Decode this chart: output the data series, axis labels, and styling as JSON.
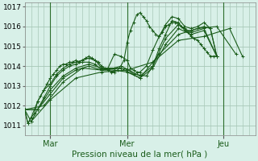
{
  "xlabel": "Pression niveau de la mer( hPa )",
  "bg_color": "#d8f0e8",
  "grid_color": "#a8c8b8",
  "line_color": "#1a5c1a",
  "ylim": [
    1010.5,
    1017.2
  ],
  "xlim": [
    0,
    72
  ],
  "yticks": [
    1011,
    1012,
    1013,
    1014,
    1015,
    1016,
    1017
  ],
  "day_labels": [
    [
      8,
      "Mar"
    ],
    [
      32,
      "Mer"
    ],
    [
      62,
      "Jeu"
    ]
  ],
  "series": [
    [
      0,
      1011.8,
      1,
      1011.1,
      2,
      1011.4,
      3,
      1011.6,
      4,
      1012.2,
      5,
      1012.5,
      6,
      1012.8,
      7,
      1013.1,
      8,
      1013.4,
      9,
      1013.6,
      10,
      1013.8,
      11,
      1014.0,
      12,
      1014.1,
      13,
      1014.1,
      14,
      1014.2,
      15,
      1014.2,
      16,
      1014.3,
      17,
      1014.2,
      18,
      1014.3,
      19,
      1014.4,
      20,
      1014.5,
      21,
      1014.4,
      22,
      1014.3,
      23,
      1014.2,
      24,
      1014.0,
      25,
      1013.9,
      26,
      1013.8,
      27,
      1013.7,
      28,
      1013.7,
      29,
      1013.8,
      30,
      1014.0,
      31,
      1014.3,
      32,
      1015.2,
      33,
      1015.8,
      34,
      1016.2,
      35,
      1016.6,
      36,
      1016.7,
      37,
      1016.5,
      38,
      1016.3,
      39,
      1016.0,
      40,
      1015.8,
      41,
      1015.6,
      42,
      1015.5,
      43,
      1015.7,
      44,
      1016.0,
      45,
      1016.1,
      46,
      1016.2,
      47,
      1016.2,
      48,
      1016.1,
      49,
      1016.0,
      50,
      1015.9,
      51,
      1015.7,
      52,
      1015.5,
      53,
      1015.4,
      54,
      1015.3,
      55,
      1015.1,
      56,
      1014.9,
      57,
      1014.7,
      58,
      1014.5,
      59,
      1014.5,
      60,
      1014.5
    ],
    [
      0,
      1011.8,
      1,
      1011.1,
      2,
      1011.4,
      4,
      1012.2,
      6,
      1012.8,
      8,
      1013.1,
      10,
      1013.6,
      12,
      1013.9,
      14,
      1014.1,
      16,
      1014.2,
      18,
      1014.3,
      20,
      1014.4,
      22,
      1014.3,
      24,
      1013.9,
      26,
      1013.9,
      28,
      1014.6,
      30,
      1014.5,
      32,
      1014.3,
      33,
      1013.9,
      34,
      1013.8,
      35,
      1013.7,
      36,
      1013.7,
      38,
      1014.0,
      40,
      1014.8,
      42,
      1015.5,
      44,
      1016.1,
      46,
      1016.5,
      48,
      1016.4,
      50,
      1016.0,
      52,
      1015.9,
      54,
      1016.0,
      56,
      1016.2,
      58,
      1015.9,
      60,
      1014.5
    ],
    [
      0,
      1011.8,
      2,
      1011.2,
      4,
      1011.8,
      6,
      1012.4,
      8,
      1013.0,
      10,
      1013.5,
      12,
      1013.8,
      14,
      1014.0,
      16,
      1014.1,
      18,
      1014.2,
      20,
      1014.2,
      22,
      1014.1,
      24,
      1013.8,
      26,
      1013.85,
      28,
      1013.9,
      30,
      1014.0,
      32,
      1013.85,
      34,
      1013.6,
      36,
      1013.55,
      38,
      1013.5,
      40,
      1014.0,
      42,
      1014.9,
      44,
      1015.6,
      46,
      1016.3,
      48,
      1016.2,
      50,
      1015.8,
      52,
      1015.8,
      54,
      1015.9,
      56,
      1016.0,
      58,
      1015.9,
      60,
      1014.5
    ],
    [
      0,
      1011.8,
      4,
      1011.8,
      8,
      1012.8,
      12,
      1013.5,
      16,
      1013.9,
      20,
      1014.1,
      24,
      1013.9,
      28,
      1013.9,
      32,
      1013.85,
      36,
      1013.5,
      40,
      1014.0,
      44,
      1015.4,
      48,
      1016.1,
      52,
      1015.7,
      56,
      1015.9,
      60,
      1014.5
    ],
    [
      0,
      1011.8,
      4,
      1011.8,
      8,
      1012.6,
      12,
      1013.4,
      16,
      1013.8,
      20,
      1014.0,
      24,
      1013.8,
      28,
      1013.8,
      32,
      1013.7,
      36,
      1013.4,
      40,
      1013.9,
      44,
      1015.1,
      48,
      1015.9,
      52,
      1015.6,
      56,
      1015.8,
      60,
      1014.5
    ],
    [
      0,
      1011.8,
      6,
      1012.0,
      12,
      1013.2,
      18,
      1013.9,
      24,
      1013.8,
      30,
      1013.9,
      36,
      1013.4,
      42,
      1014.6,
      48,
      1015.6,
      54,
      1015.9,
      60,
      1016.0,
      66,
      1014.6
    ],
    [
      2,
      1011.2,
      8,
      1012.3,
      16,
      1013.4,
      24,
      1013.7,
      32,
      1013.8,
      40,
      1014.2,
      48,
      1015.3,
      56,
      1015.5,
      64,
      1015.9,
      68,
      1014.5
    ]
  ]
}
